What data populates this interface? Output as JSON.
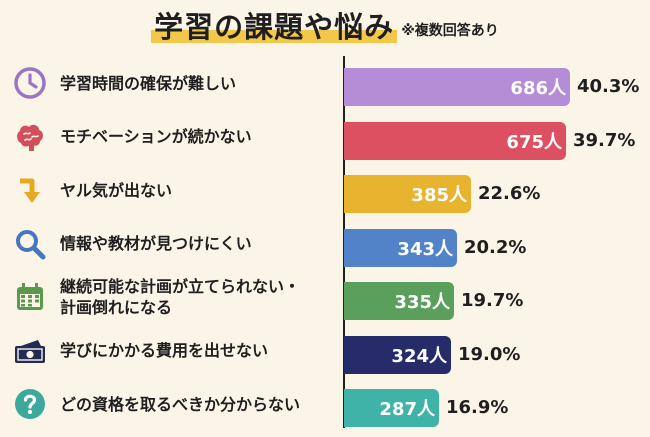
{
  "title": "学習の課題や悩み",
  "subtitle": "※複数回答あり",
  "chart_data": {
    "type": "bar",
    "orientation": "horizontal",
    "categories": [
      "学習時間の確保が難しい",
      "モチベーションが続かない",
      "ヤル気が出ない",
      "情報や教材が見つけにくい",
      "継続可能な計画が立てられない・計画倒れになる",
      "学びにかかる費用を出せない",
      "どの資格を取るべきか分からない"
    ],
    "category_lines": [
      [
        "学習時間の確保が難しい"
      ],
      [
        "モチベーションが続かない"
      ],
      [
        "ヤル気が出ない"
      ],
      [
        "情報や教材が見つけにくい"
      ],
      [
        "継続可能な計画が立てられない・",
        "計画倒れになる"
      ],
      [
        "学びにかかる費用を出せない"
      ],
      [
        "どの資格を取るべきか分からない"
      ]
    ],
    "values": [
      686,
      675,
      385,
      343,
      335,
      324,
      287
    ],
    "value_labels": [
      "686人",
      "675人",
      "385人",
      "343人",
      "335人",
      "324人",
      "287人"
    ],
    "percentages": [
      40.3,
      39.7,
      22.6,
      20.2,
      19.7,
      19.0,
      16.9
    ],
    "percentage_labels": [
      "40.3%",
      "39.7%",
      "22.6%",
      "20.2%",
      "19.7%",
      "19.0%",
      "16.9%"
    ],
    "colors": [
      "#b58cd6",
      "#dd5061",
      "#e8b32f",
      "#5283c9",
      "#5aa05c",
      "#252c69",
      "#3fb3a7"
    ],
    "icons": [
      "clock-icon",
      "brain-icon",
      "arrow-down-icon",
      "search-icon",
      "calendar-icon",
      "money-icon",
      "question-icon"
    ],
    "icon_colors": [
      "#9b74c4",
      "#d24e5a",
      "#e8a922",
      "#4676c0",
      "#5a9a4e",
      "#232b55",
      "#3ea89c"
    ],
    "xlim": [
      0,
      686
    ],
    "grid": false,
    "legend": "none"
  }
}
